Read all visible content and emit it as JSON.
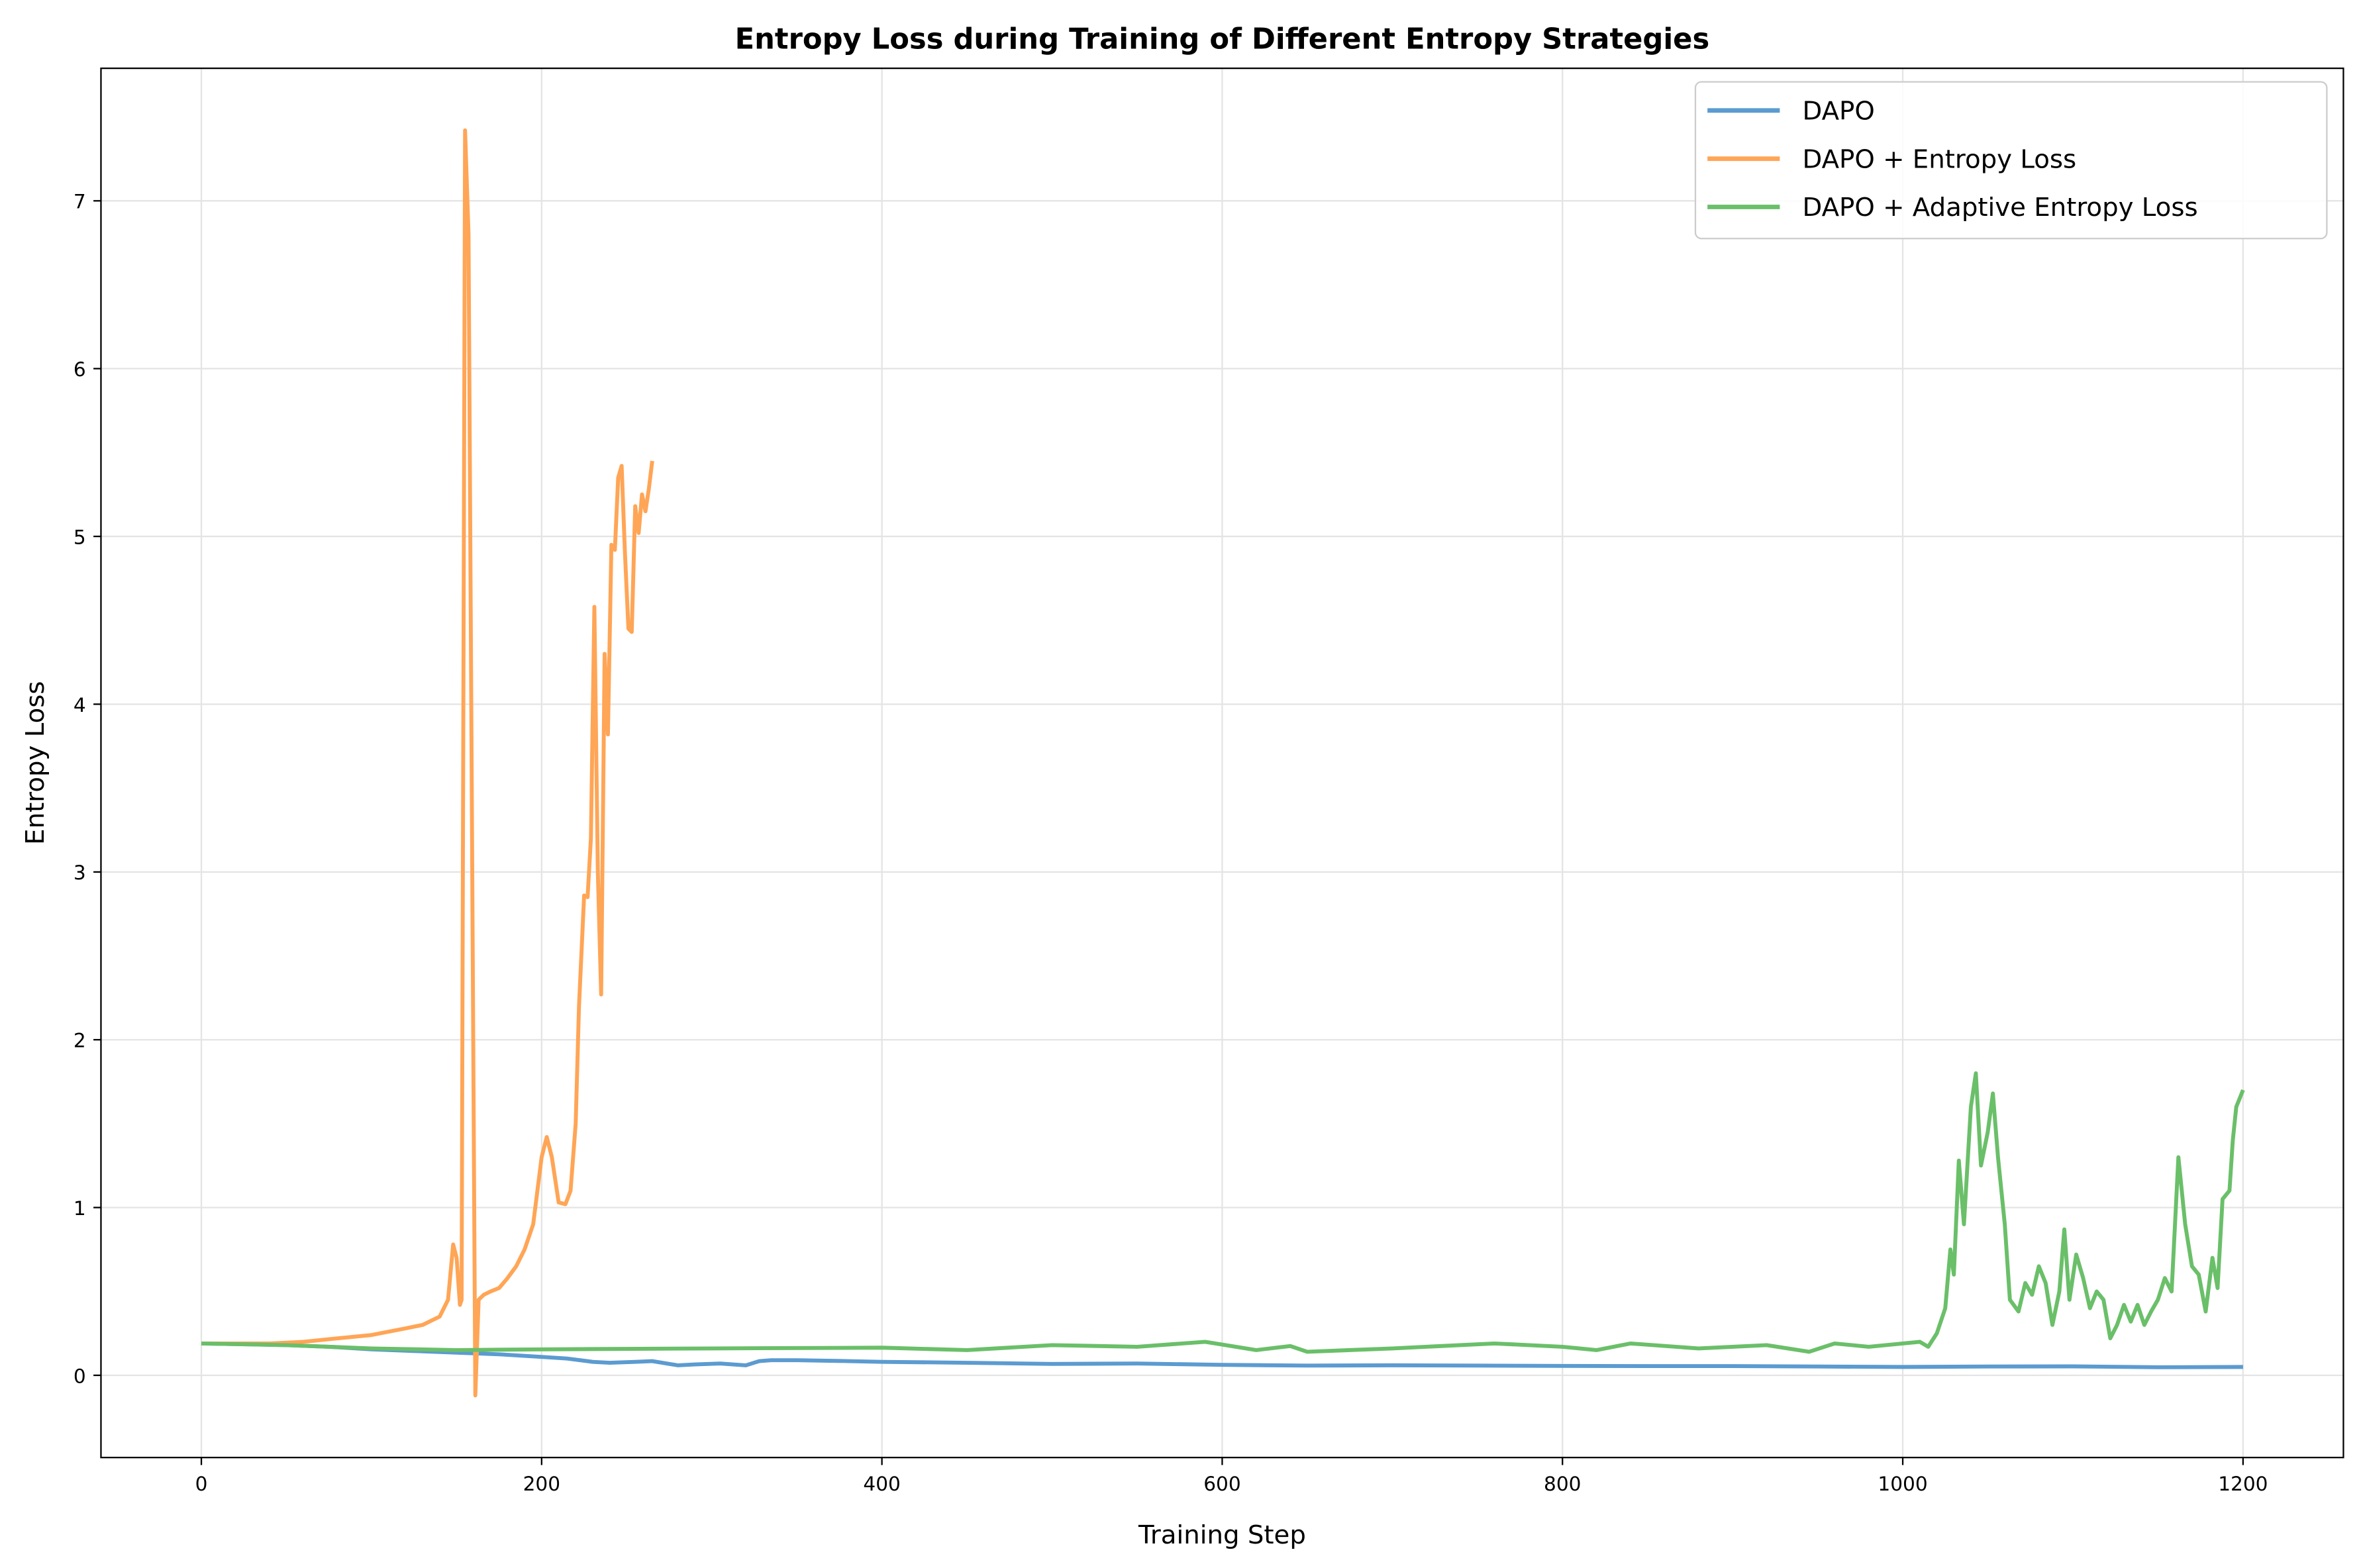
{
  "chart_data": {
    "type": "line",
    "title": "Entropy Loss during Training of Different Entropy Strategies",
    "xlabel": "Training Step",
    "ylabel": "Entropy Loss",
    "xlim": [
      -59,
      1259
    ],
    "ylim": [
      -0.49,
      7.79
    ],
    "xticks": [
      0,
      200,
      400,
      600,
      800,
      1000,
      1200
    ],
    "yticks": [
      0,
      1,
      2,
      3,
      4,
      5,
      6,
      7
    ],
    "grid": true,
    "legend_position": "top-right",
    "series": [
      {
        "name": "DAPO",
        "color": "#5b9bd0",
        "x": [
          0,
          25,
          50,
          75,
          100,
          125,
          150,
          175,
          200,
          215,
          230,
          240,
          255,
          265,
          280,
          290,
          305,
          320,
          328,
          335,
          350,
          380,
          400,
          450,
          500,
          550,
          600,
          650,
          700,
          750,
          800,
          850,
          900,
          950,
          1000,
          1050,
          1100,
          1150,
          1200
        ],
        "y": [
          0.19,
          0.185,
          0.18,
          0.17,
          0.155,
          0.145,
          0.135,
          0.125,
          0.11,
          0.1,
          0.08,
          0.075,
          0.08,
          0.085,
          0.06,
          0.065,
          0.07,
          0.06,
          0.085,
          0.09,
          0.09,
          0.085,
          0.08,
          0.075,
          0.068,
          0.07,
          0.062,
          0.058,
          0.06,
          0.058,
          0.056,
          0.055,
          0.055,
          0.052,
          0.05,
          0.052,
          0.053,
          0.048,
          0.05
        ]
      },
      {
        "name": "DAPO + Entropy Loss",
        "color": "#ffa556",
        "x": [
          0,
          20,
          40,
          60,
          80,
          100,
          110,
          120,
          130,
          140,
          145,
          148,
          150,
          152,
          153,
          155,
          157,
          161,
          163,
          166,
          170,
          175,
          180,
          185,
          190,
          195,
          200,
          203,
          206,
          210,
          214,
          217,
          220,
          222,
          225,
          227,
          229,
          231,
          233,
          235,
          237,
          239,
          241,
          243,
          245,
          247,
          249,
          251,
          253,
          255,
          257,
          259,
          261,
          263,
          265
        ],
        "y": [
          0.19,
          0.19,
          0.19,
          0.2,
          0.22,
          0.24,
          0.26,
          0.28,
          0.3,
          0.35,
          0.45,
          0.78,
          0.7,
          0.42,
          0.45,
          7.42,
          6.8,
          -0.12,
          0.45,
          0.48,
          0.5,
          0.52,
          0.58,
          0.65,
          0.75,
          0.9,
          1.3,
          1.42,
          1.3,
          1.03,
          1.02,
          1.1,
          1.5,
          2.2,
          2.86,
          2.85,
          3.2,
          4.58,
          3.0,
          2.27,
          4.3,
          3.82,
          4.95,
          4.92,
          5.35,
          5.42,
          4.9,
          4.45,
          4.43,
          5.18,
          5.02,
          5.25,
          5.15,
          5.28,
          5.45
        ]
      },
      {
        "name": "DAPO + Adaptive Entropy Loss",
        "color": "#6abf69",
        "x": [
          0,
          50,
          100,
          150,
          200,
          300,
          400,
          450,
          500,
          550,
          590,
          620,
          640,
          650,
          700,
          760,
          800,
          820,
          840,
          880,
          920,
          945,
          960,
          980,
          1010,
          1015,
          1020,
          1025,
          1028,
          1030,
          1033,
          1036,
          1040,
          1043,
          1046,
          1050,
          1053,
          1056,
          1060,
          1063,
          1068,
          1072,
          1076,
          1080,
          1084,
          1088,
          1092,
          1095,
          1098,
          1102,
          1106,
          1110,
          1114,
          1118,
          1122,
          1126,
          1130,
          1134,
          1138,
          1142,
          1146,
          1150,
          1154,
          1158,
          1162,
          1166,
          1170,
          1174,
          1178,
          1182,
          1185,
          1188,
          1192,
          1194,
          1196,
          1200
        ],
        "y": [
          0.19,
          0.18,
          0.16,
          0.15,
          0.155,
          0.16,
          0.165,
          0.15,
          0.18,
          0.17,
          0.2,
          0.15,
          0.175,
          0.14,
          0.16,
          0.19,
          0.17,
          0.15,
          0.19,
          0.16,
          0.18,
          0.14,
          0.19,
          0.17,
          0.2,
          0.17,
          0.25,
          0.4,
          0.75,
          0.6,
          1.28,
          0.9,
          1.6,
          1.8,
          1.25,
          1.45,
          1.68,
          1.3,
          0.9,
          0.45,
          0.38,
          0.55,
          0.48,
          0.65,
          0.55,
          0.3,
          0.5,
          0.87,
          0.45,
          0.72,
          0.58,
          0.4,
          0.5,
          0.45,
          0.22,
          0.3,
          0.42,
          0.32,
          0.42,
          0.3,
          0.38,
          0.45,
          0.58,
          0.5,
          1.3,
          0.9,
          0.65,
          0.6,
          0.38,
          0.7,
          0.52,
          1.05,
          1.1,
          1.4,
          1.6,
          1.7
        ]
      }
    ]
  }
}
